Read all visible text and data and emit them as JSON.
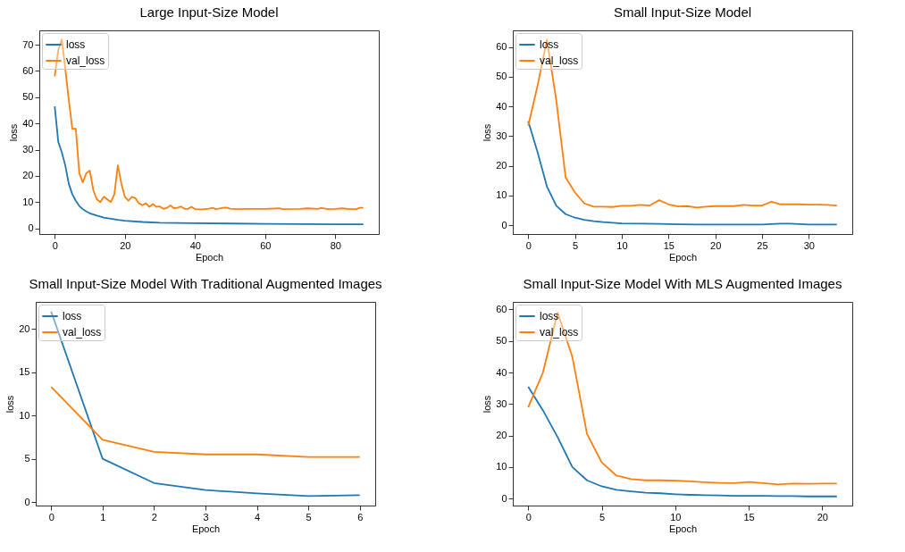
{
  "chart_data": [
    {
      "type": "line",
      "title": "Large Input-Size Model",
      "xlabel": "Epoch",
      "ylabel": "loss",
      "xlim": [
        -4.4,
        92.4
      ],
      "ylim": [
        -2.2,
        75.5
      ],
      "xticks": [
        0,
        20,
        40,
        60,
        80
      ],
      "yticks": [
        0,
        10,
        20,
        30,
        40,
        50,
        60,
        70
      ],
      "legend": "top left",
      "series": [
        {
          "name": "loss",
          "color": "#1f77b4",
          "x": [
            0,
            1,
            2,
            3,
            4,
            5,
            6,
            7,
            8,
            9,
            10,
            12,
            14,
            16,
            18,
            20,
            25,
            30,
            40,
            50,
            60,
            70,
            80,
            88
          ],
          "values": [
            46.5,
            33,
            29,
            24,
            17,
            13,
            10.5,
            8.5,
            7.3,
            6.4,
            5.7,
            4.8,
            4.1,
            3.6,
            3.2,
            2.9,
            2.4,
            2.1,
            1.9,
            1.8,
            1.7,
            1.6,
            1.5,
            1.5
          ]
        },
        {
          "name": "val_loss",
          "color": "#ff7f0e",
          "x": [
            0,
            1,
            2,
            3,
            4,
            5,
            6,
            7,
            8,
            9,
            10,
            11,
            12,
            13,
            14,
            15,
            16,
            17,
            18,
            19,
            20,
            21,
            22,
            23,
            24,
            25,
            26,
            27,
            28,
            29,
            30,
            31,
            32,
            33,
            34,
            35,
            36,
            37,
            38,
            39,
            40,
            42,
            44,
            45,
            46,
            48,
            49,
            50,
            52,
            55,
            60,
            64,
            65,
            70,
            72,
            75,
            76,
            78,
            80,
            82,
            84,
            86,
            87,
            88
          ],
          "values": [
            58,
            68,
            72,
            61,
            49,
            38,
            38,
            21,
            17.5,
            21,
            22,
            14.5,
            11,
            10,
            12,
            11,
            10,
            13,
            24,
            17,
            12,
            10.5,
            12,
            11.5,
            9.5,
            8.8,
            9.5,
            8.2,
            9.2,
            8.2,
            8.3,
            7.4,
            7.8,
            8.7,
            7.6,
            7.8,
            8.3,
            7.4,
            7.4,
            8.2,
            7.3,
            7.2,
            7.5,
            7.8,
            7.3,
            7.8,
            7.9,
            7.5,
            7.3,
            7.4,
            7.4,
            7.6,
            7.3,
            7.4,
            7.6,
            7.4,
            7.7,
            7.3,
            7.4,
            7.6,
            7.3,
            7.3,
            7.8,
            7.8
          ]
        }
      ]
    },
    {
      "type": "line",
      "title": "Small Input-Size Model",
      "xlabel": "Epoch",
      "ylabel": "loss",
      "xlim": [
        -1.65,
        34.65
      ],
      "ylim": [
        -3.0,
        65.6
      ],
      "xticks": [
        0,
        5,
        10,
        15,
        20,
        25,
        30
      ],
      "yticks": [
        0,
        10,
        20,
        30,
        40,
        50,
        60
      ],
      "legend": "top left",
      "series": [
        {
          "name": "loss",
          "color": "#1f77b4",
          "x": [
            0,
            1,
            2,
            3,
            4,
            5,
            6,
            7,
            8,
            9,
            10,
            12,
            14,
            16,
            18,
            20,
            25,
            27,
            28,
            30,
            33
          ],
          "values": [
            35,
            24.5,
            13,
            6.5,
            3.7,
            2.5,
            1.8,
            1.3,
            1.0,
            0.8,
            0.6,
            0.5,
            0.4,
            0.3,
            0.2,
            0.2,
            0.2,
            0.5,
            0.5,
            0.2,
            0.2
          ]
        },
        {
          "name": "val_loss",
          "color": "#ff7f0e",
          "x": [
            0,
            1,
            2,
            3,
            4,
            5,
            6,
            7,
            8,
            9,
            10,
            11,
            12,
            13,
            14,
            15,
            16,
            17,
            18,
            19,
            20,
            21,
            22,
            23,
            24,
            25,
            26,
            27,
            28,
            29,
            30,
            31,
            32,
            33
          ],
          "values": [
            33.5,
            47,
            62.5,
            42,
            16,
            11,
            7.3,
            6.2,
            6.2,
            6.1,
            6.5,
            6.5,
            6.8,
            6.6,
            8.4,
            7,
            6.3,
            6.4,
            5.9,
            6.2,
            6.4,
            6.4,
            6.4,
            6.8,
            6.6,
            6.6,
            7.9,
            7,
            7,
            7,
            6.9,
            6.9,
            6.8,
            6.6
          ]
        }
      ]
    },
    {
      "type": "line",
      "title": "Small Input-Size Model With Traditional Augmented Images",
      "xlabel": "Epoch",
      "ylabel": "loss",
      "xlim": [
        -0.3,
        6.3
      ],
      "ylim": [
        -0.4,
        23.1
      ],
      "xticks": [
        0,
        1,
        2,
        3,
        4,
        5,
        6
      ],
      "yticks": [
        0,
        5,
        10,
        15,
        20
      ],
      "legend": "top left",
      "series": [
        {
          "name": "loss",
          "color": "#1f77b4",
          "x": [
            0,
            1,
            2,
            3,
            4,
            5,
            6
          ],
          "values": [
            22,
            5,
            2.2,
            1.4,
            1.0,
            0.7,
            0.8
          ]
        },
        {
          "name": "val_loss",
          "color": "#ff7f0e",
          "x": [
            0,
            1,
            2,
            3,
            4,
            5,
            6
          ],
          "values": [
            13.3,
            7.2,
            5.8,
            5.5,
            5.5,
            5.2,
            5.2
          ]
        }
      ]
    },
    {
      "type": "line",
      "title": "Small Input-Size Model With MLS Augmented Images",
      "xlabel": "Epoch",
      "ylabel": "loss",
      "xlim": [
        -1.05,
        22.05
      ],
      "ylim": [
        -2.2,
        62.4
      ],
      "xticks": [
        0,
        5,
        10,
        15,
        20
      ],
      "yticks": [
        0,
        10,
        20,
        30,
        40,
        50,
        60
      ],
      "legend": "top left",
      "series": [
        {
          "name": "loss",
          "color": "#1f77b4",
          "x": [
            0,
            1,
            2,
            3,
            4,
            5,
            6,
            7,
            8,
            9,
            10,
            11,
            12,
            13,
            14,
            15,
            16,
            17,
            18,
            19,
            20,
            21
          ],
          "values": [
            35.5,
            28,
            19.5,
            10,
            5.8,
            3.9,
            2.8,
            2.3,
            1.9,
            1.7,
            1.4,
            1.2,
            1.1,
            1.0,
            0.9,
            0.9,
            0.9,
            0.8,
            0.8,
            0.7,
            0.7,
            0.7
          ]
        },
        {
          "name": "val_loss",
          "color": "#ff7f0e",
          "x": [
            0,
            1,
            2,
            3,
            4,
            5,
            6,
            7,
            8,
            9,
            10,
            11,
            12,
            13,
            14,
            15,
            16,
            17,
            18,
            19,
            20,
            21
          ],
          "values": [
            29,
            40,
            59,
            45,
            20.5,
            11.5,
            7.3,
            6.2,
            5.8,
            5.8,
            5.7,
            5.5,
            5.2,
            5.0,
            4.9,
            5.3,
            4.9,
            4.5,
            4.8,
            4.7,
            4.8,
            4.8
          ]
        }
      ]
    }
  ]
}
